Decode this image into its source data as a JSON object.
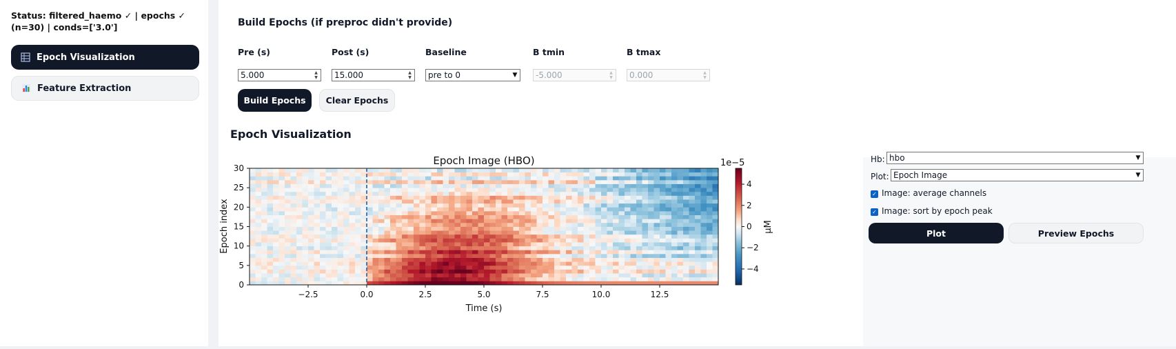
{
  "sidebar": {
    "status": "Status: filtered_haemo ✓ | epochs ✓ (n=30) | conds=['3.0']",
    "items": [
      {
        "label": "Epoch Visualization",
        "icon": "table-icon",
        "active": true
      },
      {
        "label": "Feature Extraction",
        "icon": "bar-chart-icon",
        "active": false
      }
    ]
  },
  "build": {
    "title": "Build Epochs (if preproc didn't provide)",
    "fields": {
      "pre": {
        "label": "Pre (s)",
        "value": "5.000"
      },
      "post": {
        "label": "Post (s)",
        "value": "15.000"
      },
      "baseline": {
        "label": "Baseline",
        "value": "pre to 0"
      },
      "btmin": {
        "label": "B tmin",
        "value": "-5.000"
      },
      "btmax": {
        "label": "B tmax",
        "value": "0.000"
      }
    },
    "build_button": "Build Epochs",
    "clear_button": "Clear Epochs"
  },
  "viz": {
    "title": "Epoch Visualization"
  },
  "controls": {
    "hb_label": "Hb:",
    "hb_value": "hbo",
    "plot_label": "Plot:",
    "plot_value": "Epoch Image",
    "avg_label": "Image: average channels",
    "sort_label": "Image: sort by epoch peak",
    "plot_button": "Plot",
    "preview_button": "Preview Epochs"
  },
  "chart_data": {
    "type": "heatmap",
    "title": "Epoch Image (HBO)",
    "xlabel": "Time (s)",
    "ylabel": "Epoch index",
    "xlim": [
      -5,
      15
    ],
    "ylim": [
      0,
      30
    ],
    "xticks": [
      "−2.5",
      "0.0",
      "2.5",
      "5.0",
      "7.5",
      "10.0",
      "12.5"
    ],
    "xtick_values": [
      -2.5,
      0,
      2.5,
      5,
      7.5,
      10,
      12.5
    ],
    "yticks": [
      "0",
      "5",
      "10",
      "15",
      "20",
      "25",
      "30"
    ],
    "ytick_values": [
      0,
      5,
      10,
      15,
      20,
      25,
      30
    ],
    "event_line_x": 0,
    "colorbar": {
      "label": "μM",
      "exponent": "1e−5",
      "ticks": [
        "4",
        "2",
        "0",
        "−2",
        "−4"
      ],
      "tick_values": [
        4,
        2,
        0,
        -2,
        -4
      ],
      "range": [
        -5.5,
        5.5
      ],
      "colormap": "RdBu_r"
    },
    "n_epochs": 30
  }
}
